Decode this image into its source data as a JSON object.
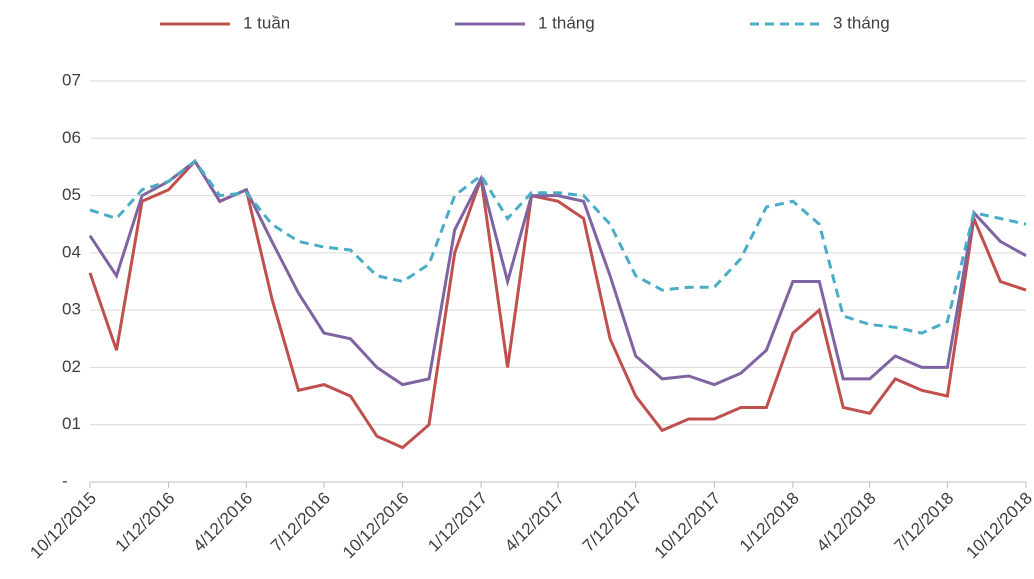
{
  "chart_data": {
    "type": "line",
    "x": [
      "10/12/2015",
      "11/12/2015",
      "12/12/2015",
      "1/12/2016",
      "2/12/2016",
      "3/12/2016",
      "4/12/2016",
      "5/12/2016",
      "6/12/2016",
      "7/12/2016",
      "8/12/2016",
      "9/12/2016",
      "10/12/2016",
      "11/12/2016",
      "12/12/2016",
      "1/12/2017",
      "2/12/2017",
      "3/12/2017",
      "4/12/2017",
      "5/12/2017",
      "6/12/2017",
      "7/12/2017",
      "8/12/2017",
      "9/12/2017",
      "10/12/2017",
      "11/12/2017",
      "12/12/2017",
      "1/12/2018",
      "2/12/2018",
      "3/12/2018",
      "4/12/2018",
      "5/12/2018",
      "6/12/2018",
      "7/12/2018",
      "8/12/2018",
      "9/12/2018",
      "10/12/2018"
    ],
    "series": [
      {
        "name": "1 tuần",
        "color": "#c0504d",
        "line_style": "solid",
        "values": [
          3.65,
          2.3,
          4.9,
          5.1,
          5.6,
          4.9,
          5.1,
          3.2,
          1.6,
          1.7,
          1.5,
          0.8,
          0.6,
          1.0,
          4.0,
          5.3,
          2.0,
          5.0,
          4.9,
          4.6,
          2.5,
          1.5,
          0.9,
          1.1,
          1.1,
          1.3,
          1.3,
          2.6,
          3.0,
          1.3,
          1.2,
          1.8,
          1.6,
          1.5,
          4.6,
          3.5,
          3.35
        ]
      },
      {
        "name": "1 tháng",
        "color": "#8064a2",
        "line_style": "solid",
        "values": [
          4.3,
          3.6,
          5.0,
          5.25,
          5.6,
          4.9,
          5.1,
          4.2,
          3.3,
          2.6,
          2.5,
          2.0,
          1.7,
          1.8,
          4.4,
          5.3,
          3.5,
          5.0,
          5.0,
          4.9,
          3.6,
          2.2,
          1.8,
          1.85,
          1.7,
          1.9,
          2.3,
          3.5,
          3.5,
          1.8,
          1.8,
          2.2,
          2.0,
          2.0,
          4.7,
          4.2,
          3.95
        ]
      },
      {
        "name": "3 tháng",
        "color": "#4bacc6",
        "line_style": "dashed",
        "values": [
          4.75,
          4.6,
          5.1,
          5.25,
          5.6,
          5.0,
          5.05,
          4.5,
          4.2,
          4.1,
          4.05,
          3.6,
          3.5,
          3.8,
          5.0,
          5.35,
          4.6,
          5.05,
          5.05,
          5.0,
          4.5,
          3.6,
          3.35,
          3.4,
          3.4,
          3.9,
          4.8,
          4.9,
          4.5,
          2.9,
          2.75,
          2.7,
          2.6,
          2.8,
          4.7,
          4.6,
          4.5
        ]
      }
    ],
    "xticks": [
      "10/12/2015",
      "1/12/2016",
      "4/12/2016",
      "7/12/2016",
      "10/12/2016",
      "1/12/2017",
      "4/12/2017",
      "7/12/2017",
      "10/12/2017",
      "1/12/2018",
      "4/12/2018",
      "7/12/2018",
      "10/12/2018"
    ],
    "ylim": [
      0,
      7
    ],
    "yticks": [
      {
        "value": 0,
        "label": "-"
      },
      {
        "value": 1,
        "label": "01"
      },
      {
        "value": 2,
        "label": "02"
      },
      {
        "value": 3,
        "label": "03"
      },
      {
        "value": 4,
        "label": "04"
      },
      {
        "value": 5,
        "label": "05"
      },
      {
        "value": 6,
        "label": "06"
      },
      {
        "value": 7,
        "label": "07"
      }
    ],
    "grid": true,
    "legend": "top"
  }
}
